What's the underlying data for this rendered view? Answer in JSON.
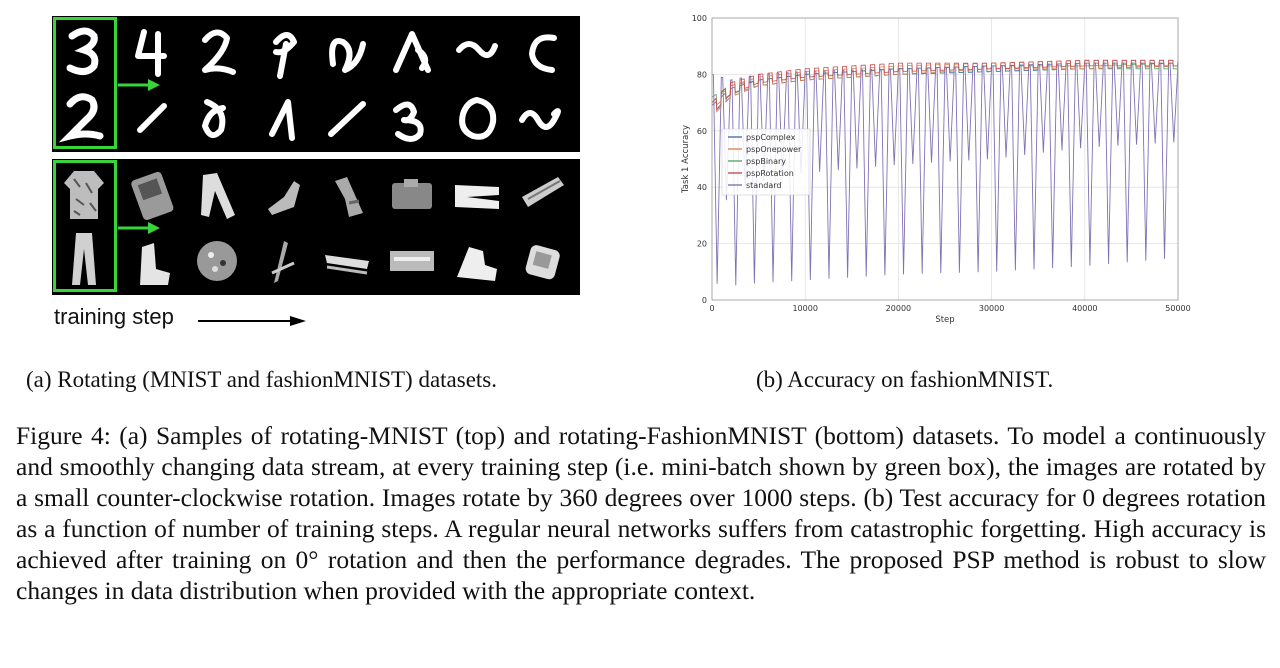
{
  "panel_a": {
    "training_step_label": "training step"
  },
  "panel_b_caption": "(b) Accuracy on fashionMNIST.",
  "panel_a_caption": "(a) Rotating (MNIST and fashionMNIST) datasets.",
  "figure_caption": "Figure 4: (a) Samples of rotating-MNIST (top) and rotating-FashionMNIST (bottom) datasets. To model a continuously and smoothly changing data stream, at every training step (i.e. mini-batch shown by green box), the images are rotated by a small counter-clockwise rotation. Images rotate by 360 degrees over 1000 steps. (b) Test accuracy for 0 degrees rotation as a function of number of training steps. A regular neural networks suffers from catastrophic forgetting. High accuracy is achieved after training on 0° rotation and then the performance degrades. The proposed PSP method is robust to slow changes in data distribution when provided with the appropriate context.",
  "colors": {
    "green_box": "#37d43a",
    "pspComplex": "#4c72b0",
    "pspOnepower": "#dd8452",
    "pspBinary": "#55a868",
    "pspRotation": "#c44e52",
    "standard": "#8172b3"
  },
  "chart_data": {
    "type": "line",
    "title": "",
    "xlabel": "Step",
    "ylabel": "Task 1 Accuracy",
    "xlim": [
      0,
      50000
    ],
    "ylim": [
      0,
      100
    ],
    "xticks": [
      0,
      10000,
      20000,
      30000,
      40000,
      50000
    ],
    "yticks": [
      0,
      20,
      40,
      60,
      80,
      100
    ],
    "grid": true,
    "legend_position": "center-left",
    "oscillation_period_steps": 1000,
    "series": [
      {
        "name": "pspComplex",
        "x": [
          0,
          2000,
          5000,
          10000,
          20000,
          30000,
          40000,
          50000
        ],
        "y_low": [
          66,
          72,
          76,
          78,
          80,
          81,
          82,
          83
        ],
        "y_high": [
          69,
          75,
          78,
          80,
          82,
          83,
          84,
          84
        ]
      },
      {
        "name": "pspOnepower",
        "x": [
          0,
          2000,
          5000,
          10000,
          20000,
          30000,
          40000,
          50000
        ],
        "y_low": [
          65,
          72,
          76,
          78,
          80,
          82,
          82,
          83
        ],
        "y_high": [
          70,
          76,
          79,
          81,
          83,
          84,
          85,
          85
        ]
      },
      {
        "name": "pspBinary",
        "x": [
          0,
          2000,
          5000,
          10000,
          20000,
          30000,
          40000,
          50000
        ],
        "y_low": [
          68,
          73,
          76,
          78,
          80,
          81,
          82,
          82
        ],
        "y_high": [
          72,
          76,
          78,
          80,
          82,
          83,
          83,
          84
        ]
      },
      {
        "name": "pspRotation",
        "x": [
          0,
          2000,
          5000,
          10000,
          20000,
          30000,
          40000,
          50000
        ],
        "y_low": [
          66,
          73,
          77,
          79,
          81,
          82,
          83,
          83
        ],
        "y_high": [
          70,
          77,
          80,
          82,
          84,
          84,
          85,
          85
        ]
      },
      {
        "name": "standard",
        "x": [
          0,
          2000,
          5000,
          10000,
          20000,
          30000,
          40000,
          50000
        ],
        "y_low": [
          6,
          5,
          6,
          7,
          9,
          10,
          12,
          15
        ],
        "y_high": [
          30,
          37,
          42,
          45,
          48,
          50,
          54,
          56
        ],
        "peak": [
          80,
          78,
          80,
          81,
          82,
          83,
          84,
          84
        ]
      }
    ]
  }
}
